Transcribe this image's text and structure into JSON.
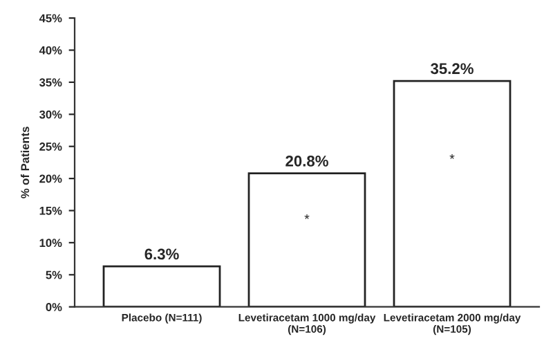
{
  "chart_data": {
    "type": "bar",
    "ylabel": "% of Patients",
    "categories": [
      "Placebo (N=111)",
      "Levetiracetam 1000 mg/day\n(N=106)",
      "Levetiracetam 2000 mg/day\n(N=105)"
    ],
    "values": [
      6.3,
      20.8,
      35.2
    ],
    "value_labels": [
      "6.3%",
      "20.8%",
      "35.2%"
    ],
    "color": "#ffffff",
    "ylim": [
      0,
      45
    ],
    "yticks": [
      {
        "value": 0,
        "label": "0%"
      },
      {
        "value": 5,
        "label": "5%"
      },
      {
        "value": 10,
        "label": "10%"
      },
      {
        "value": 15,
        "label": "15%"
      },
      {
        "value": 20,
        "label": "20%"
      },
      {
        "value": 25,
        "label": "25%"
      },
      {
        "value": 30,
        "label": "30%"
      },
      {
        "value": 35,
        "label": "35%"
      },
      {
        "value": 40,
        "label": "40%"
      },
      {
        "value": 45,
        "label": "45%"
      }
    ],
    "annotations": [
      "*",
      "*"
    ],
    "grid": false
  }
}
